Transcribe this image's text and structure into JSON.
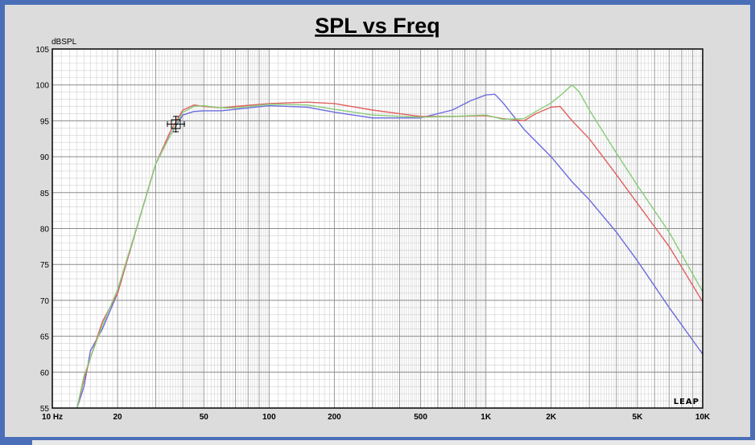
{
  "chart_data": {
    "type": "line",
    "title": "SPL vs Freq",
    "ylabel": "dBSPL",
    "xscale": "log",
    "xlim": [
      10,
      10000
    ],
    "ylim": [
      55,
      105
    ],
    "grid": true,
    "y_ticks": [
      55,
      60,
      65,
      70,
      75,
      80,
      85,
      90,
      95,
      100,
      105
    ],
    "x_ticks": [
      {
        "value": 10,
        "label": "10  Hz"
      },
      {
        "value": 20,
        "label": "20"
      },
      {
        "value": 50,
        "label": "50"
      },
      {
        "value": 100,
        "label": "100"
      },
      {
        "value": 200,
        "label": "200"
      },
      {
        "value": 500,
        "label": "500"
      },
      {
        "value": 1000,
        "label": "1K"
      },
      {
        "value": 2000,
        "label": "2K"
      },
      {
        "value": 5000,
        "label": "5K"
      },
      {
        "value": 10000,
        "label": "10K"
      }
    ],
    "series": [
      {
        "color": "#6b6bdd",
        "x": [
          13,
          14,
          15,
          17,
          20,
          25,
          30,
          35,
          40,
          45,
          50,
          60,
          70,
          100,
          150,
          200,
          300,
          500,
          700,
          850,
          1000,
          1100,
          1200,
          1500,
          2000,
          2500,
          3000,
          4000,
          5000,
          7000,
          10000
        ],
        "y": [
          54,
          58,
          63,
          66,
          71,
          81,
          89,
          93,
          95.8,
          96.3,
          96.4,
          96.4,
          96.6,
          97.1,
          96.9,
          96.2,
          95.4,
          95.4,
          96.5,
          97.8,
          98.6,
          98.7,
          97.5,
          93.8,
          90.0,
          86.5,
          84.0,
          79.5,
          75.5,
          69.0,
          62.5
        ]
      },
      {
        "color": "#e06060",
        "x": [
          13,
          14,
          15,
          17,
          20,
          25,
          30,
          35,
          40,
          45,
          50,
          60,
          70,
          100,
          150,
          200,
          300,
          500,
          700,
          1000,
          1200,
          1500,
          1700,
          2000,
          2200,
          2500,
          3000,
          4000,
          5000,
          7000,
          10000
        ],
        "y": [
          55,
          59,
          62,
          67,
          71,
          81,
          89,
          93.5,
          96.5,
          97.2,
          97.0,
          96.8,
          97.0,
          97.4,
          97.6,
          97.4,
          96.5,
          95.6,
          95.6,
          95.7,
          95.3,
          95.0,
          96.0,
          96.9,
          97.0,
          95.0,
          92.5,
          87.5,
          83.5,
          77.5,
          69.8
        ]
      },
      {
        "color": "#88cc77",
        "x": [
          13,
          14,
          15,
          17,
          20,
          25,
          30,
          35,
          40,
          45,
          50,
          60,
          70,
          100,
          150,
          200,
          300,
          500,
          700,
          1000,
          1200,
          1500,
          1700,
          2000,
          2200,
          2500,
          2700,
          3000,
          4000,
          5000,
          7000,
          10000
        ],
        "y": [
          55,
          59.5,
          62,
          66.5,
          71.5,
          81,
          89,
          93,
          96.2,
          97.0,
          97.1,
          96.8,
          96.8,
          97.3,
          97.2,
          96.6,
          95.8,
          95.5,
          95.6,
          95.8,
          95.2,
          95.3,
          96.3,
          97.5,
          98.5,
          100.0,
          99.0,
          96.5,
          90.5,
          86.0,
          79.5,
          71.2
        ]
      }
    ],
    "annotations": [
      "LEAP"
    ]
  }
}
